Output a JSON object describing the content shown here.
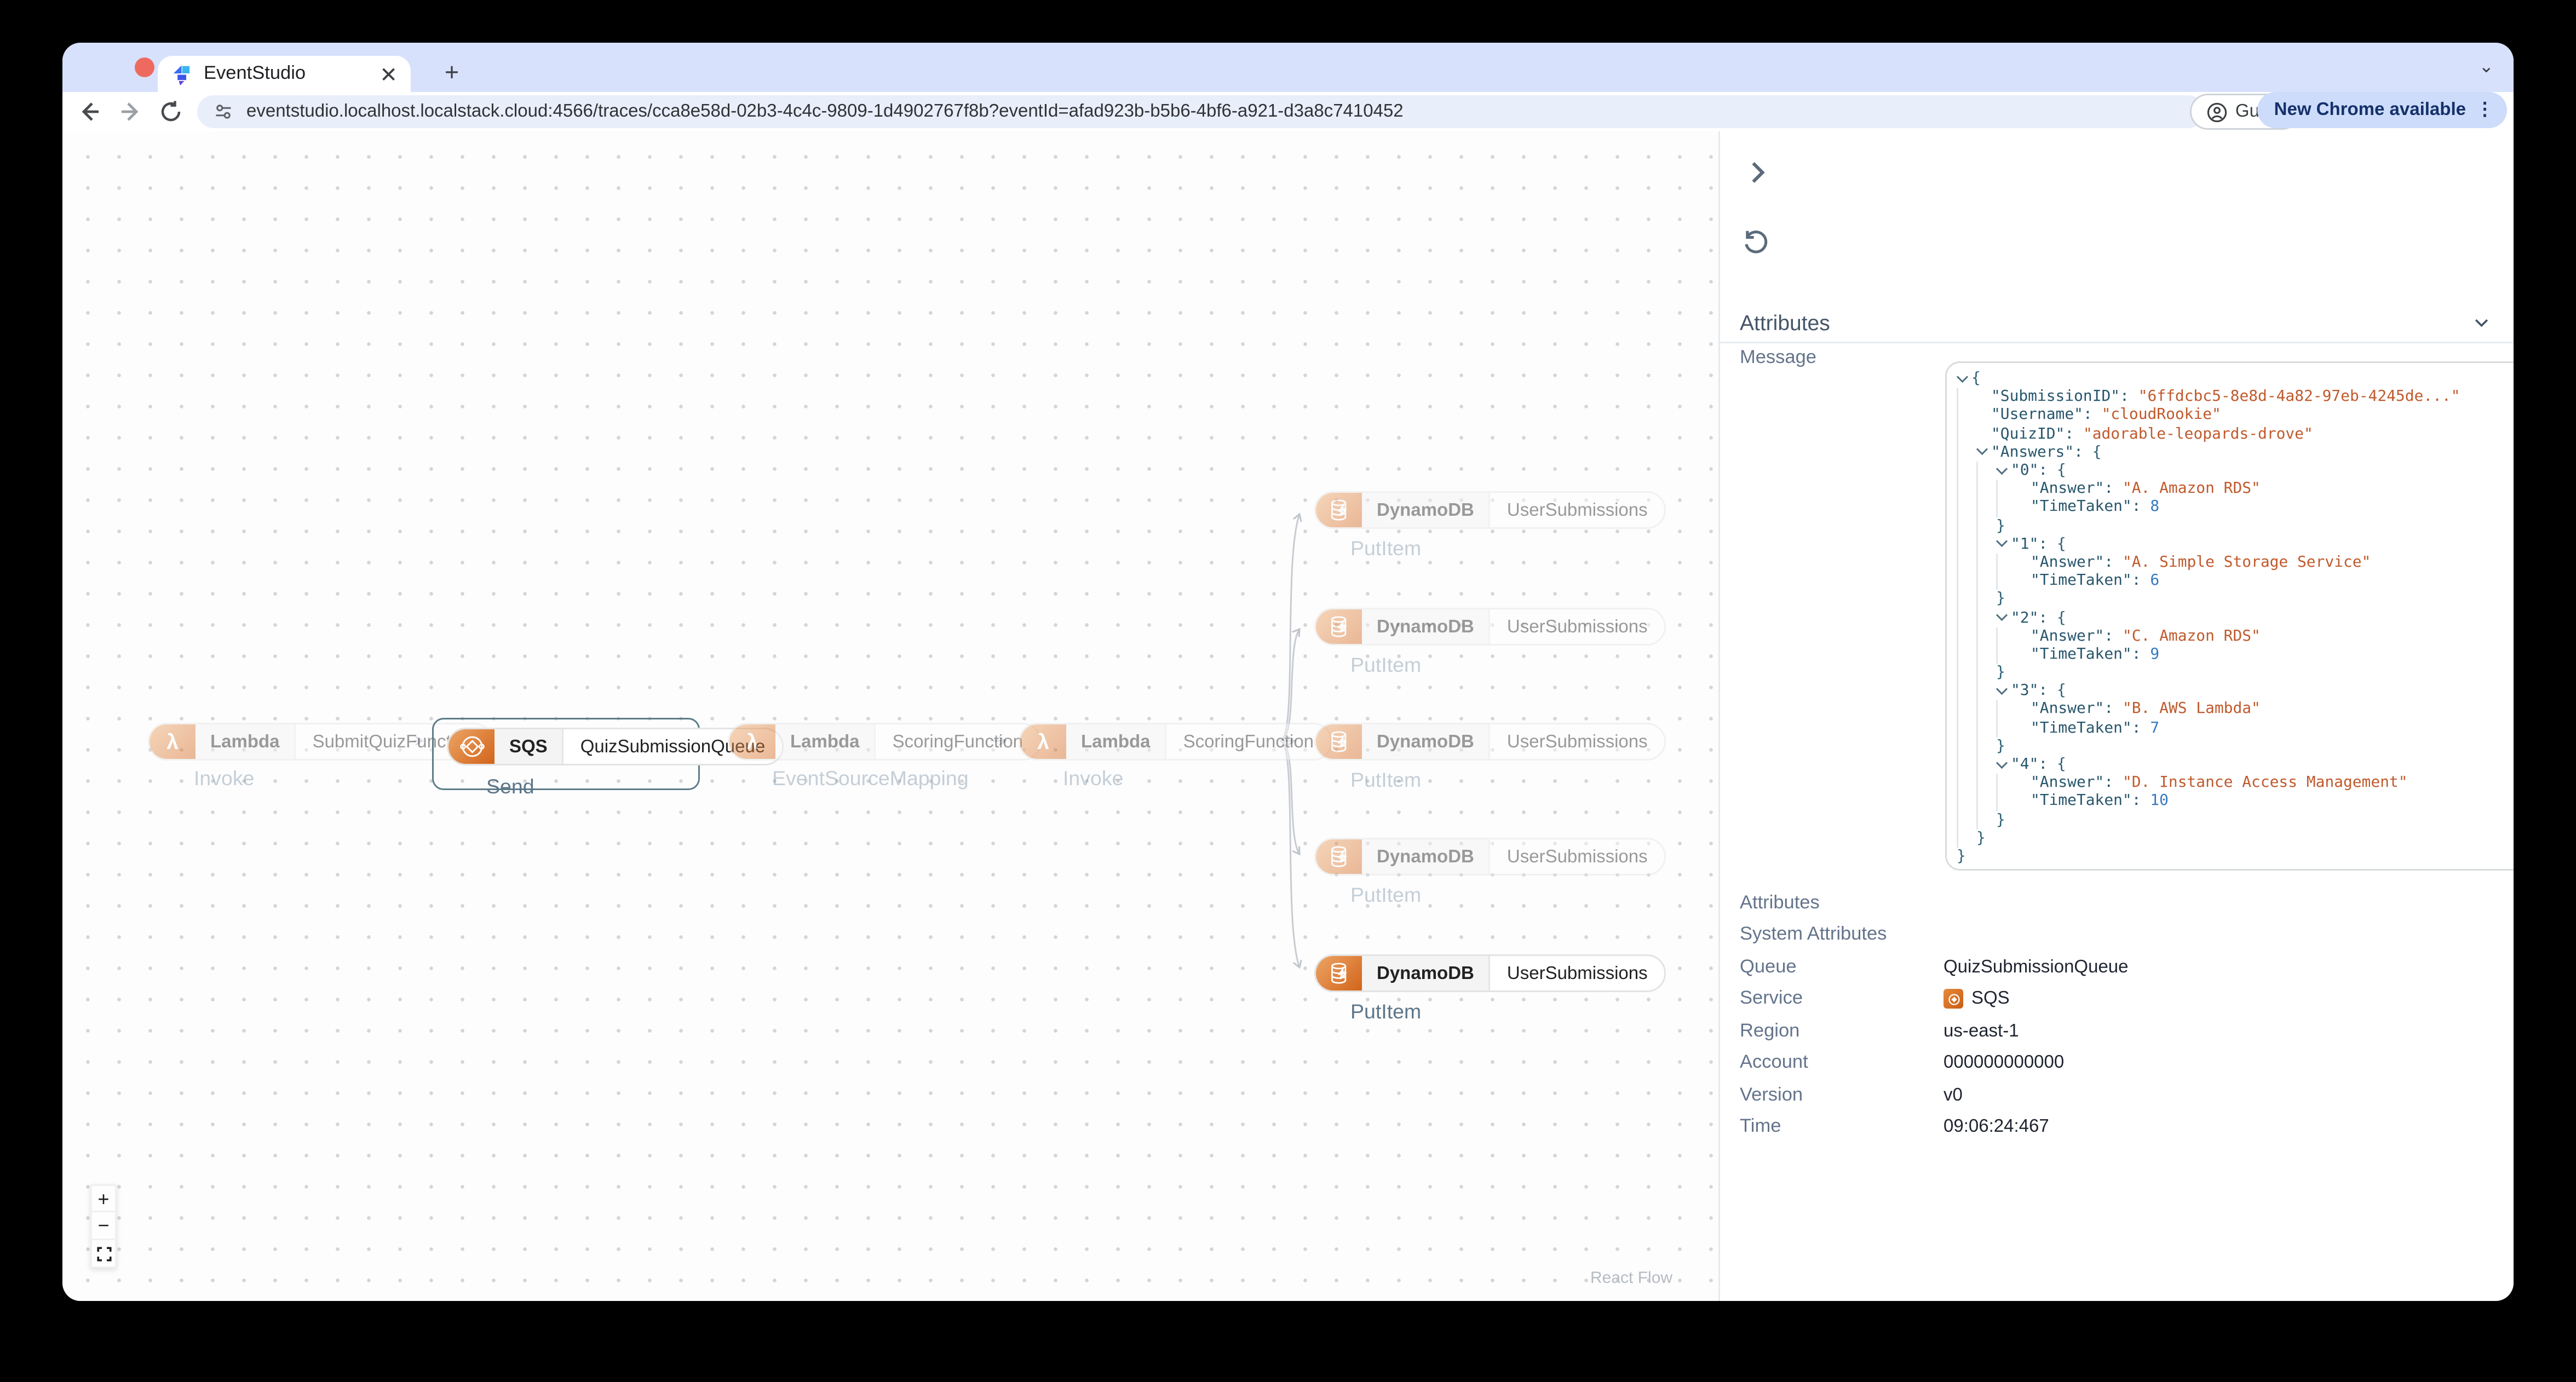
{
  "browser": {
    "tab_title": "EventStudio",
    "url": "eventstudio.localhost.localstack.cloud:4566/traces/cca8e58d-02b3-4c4c-9809-1d4902767f8b?eventId=afad923b-b5b6-4bf6-a921-d3a8c7410452",
    "guest_label": "Guest",
    "update_label": "New Chrome available"
  },
  "canvas": {
    "nodes": [
      {
        "service": "Lambda",
        "name": "SubmitQuizFunction",
        "action": "Invoke"
      },
      {
        "service": "SQS",
        "name": "QuizSubmissionQueue",
        "action": "Send"
      },
      {
        "service": "Lambda",
        "name": "ScoringFunction",
        "action": "EventSourceMapping"
      },
      {
        "service": "Lambda",
        "name": "ScoringFunction",
        "action": "Invoke"
      },
      {
        "service": "DynamoDB",
        "name": "UserSubmissions",
        "action": "PutItem"
      },
      {
        "service": "DynamoDB",
        "name": "UserSubmissions",
        "action": "PutItem"
      },
      {
        "service": "DynamoDB",
        "name": "UserSubmissions",
        "action": "PutItem"
      },
      {
        "service": "DynamoDB",
        "name": "UserSubmissions",
        "action": "PutItem"
      },
      {
        "service": "DynamoDB",
        "name": "UserSubmissions",
        "action": "PutItem"
      }
    ],
    "controls": {
      "zoom_in": "+",
      "zoom_out": "−"
    },
    "attribution": "React Flow"
  },
  "panel": {
    "section_title": "Attributes",
    "message_label": "Message",
    "message": {
      "SubmissionID": "6ffdcbc5-8e8d-4a82-97eb-4245de...",
      "Username": "cloudRookie",
      "QuizID": "adorable-leopards-drove",
      "Answers": {
        "0": {
          "Answer": "A. Amazon RDS",
          "TimeTaken": 8
        },
        "1": {
          "Answer": "A. Simple Storage Service",
          "TimeTaken": 6
        },
        "2": {
          "Answer": "C. Amazon RDS",
          "TimeTaken": 9
        },
        "3": {
          "Answer": "B. AWS Lambda",
          "TimeTaken": 7
        },
        "4": {
          "Answer": "D. Instance Access Management",
          "TimeTaken": 10
        }
      }
    },
    "rows": [
      {
        "label": "Attributes",
        "value": ""
      },
      {
        "label": "System Attributes",
        "value": ""
      },
      {
        "label": "Queue",
        "value": "QuizSubmissionQueue"
      },
      {
        "label": "Service",
        "value": "SQS"
      },
      {
        "label": "Region",
        "value": "us-east-1"
      },
      {
        "label": "Account",
        "value": "000000000000"
      },
      {
        "label": "Version",
        "value": "v0"
      },
      {
        "label": "Time",
        "value": "09:06:24:467"
      }
    ]
  },
  "colors": {
    "accent_orange": "#d2641a",
    "selection_border": "#5d7d87",
    "json_key": "#28566c",
    "json_string": "#c05a2d",
    "json_number": "#3579c1",
    "tabstrip": "#d7e1fc",
    "update_pill": "#cddcfa"
  }
}
